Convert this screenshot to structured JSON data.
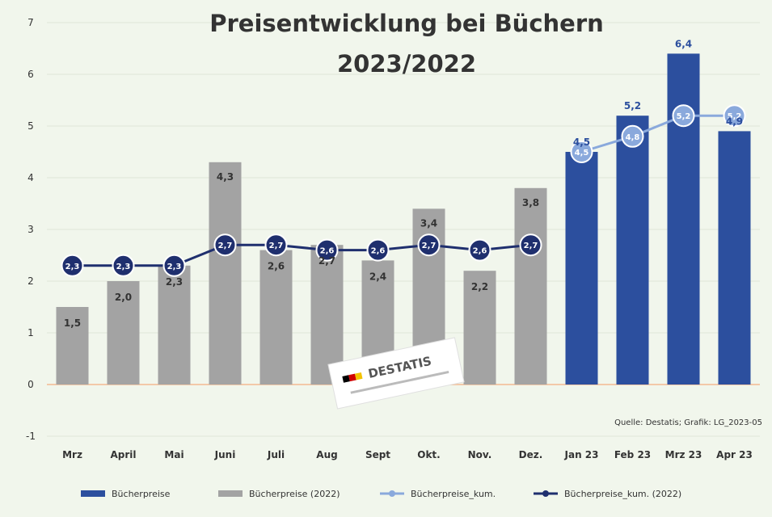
{
  "chart_data": {
    "type": "bar",
    "title_lines": [
      "Preisentwicklung bei Büchern",
      "2023/2022"
    ],
    "categories": [
      "Mrz",
      "April",
      "Mai",
      "Juni",
      "Juli",
      "Aug",
      "Sept",
      "Okt.",
      "Nov.",
      "Dez.",
      "Jan 23",
      "Feb 23",
      "Mrz 23",
      "Apr 23"
    ],
    "ylim": [
      -1,
      7
    ],
    "yticks": [
      -1,
      0,
      1,
      2,
      3,
      4,
      5,
      6,
      7
    ],
    "grid": true,
    "legend_position": "bottom",
    "series": [
      {
        "name": "Bücherpreise",
        "kind": "bar",
        "color": "#2c4f9e",
        "values": [
          null,
          null,
          null,
          null,
          null,
          null,
          null,
          null,
          null,
          null,
          4.5,
          5.2,
          6.4,
          4.9
        ]
      },
      {
        "name": "Bücherpreise (2022)",
        "kind": "bar",
        "color": "#a3a3a3",
        "values": [
          1.5,
          2.0,
          2.3,
          4.3,
          2.6,
          2.7,
          2.4,
          3.4,
          2.2,
          3.8,
          null,
          null,
          null,
          null
        ]
      },
      {
        "name": "Bücherpreise_kum.",
        "kind": "line",
        "color": "#8aa9dc",
        "values": [
          null,
          null,
          null,
          null,
          null,
          null,
          null,
          null,
          null,
          null,
          4.5,
          4.8,
          5.2,
          5.2
        ]
      },
      {
        "name": "Bücherpreise_kum. (2022)",
        "kind": "line",
        "color": "#1f2f6e",
        "values": [
          2.3,
          2.3,
          2.3,
          2.7,
          2.7,
          2.6,
          2.6,
          2.7,
          2.6,
          2.7,
          null,
          null,
          null,
          null
        ]
      }
    ],
    "source": "Quelle: Destatis; Grafik: LG_2023-05",
    "logo_text": "DESTATIS"
  }
}
